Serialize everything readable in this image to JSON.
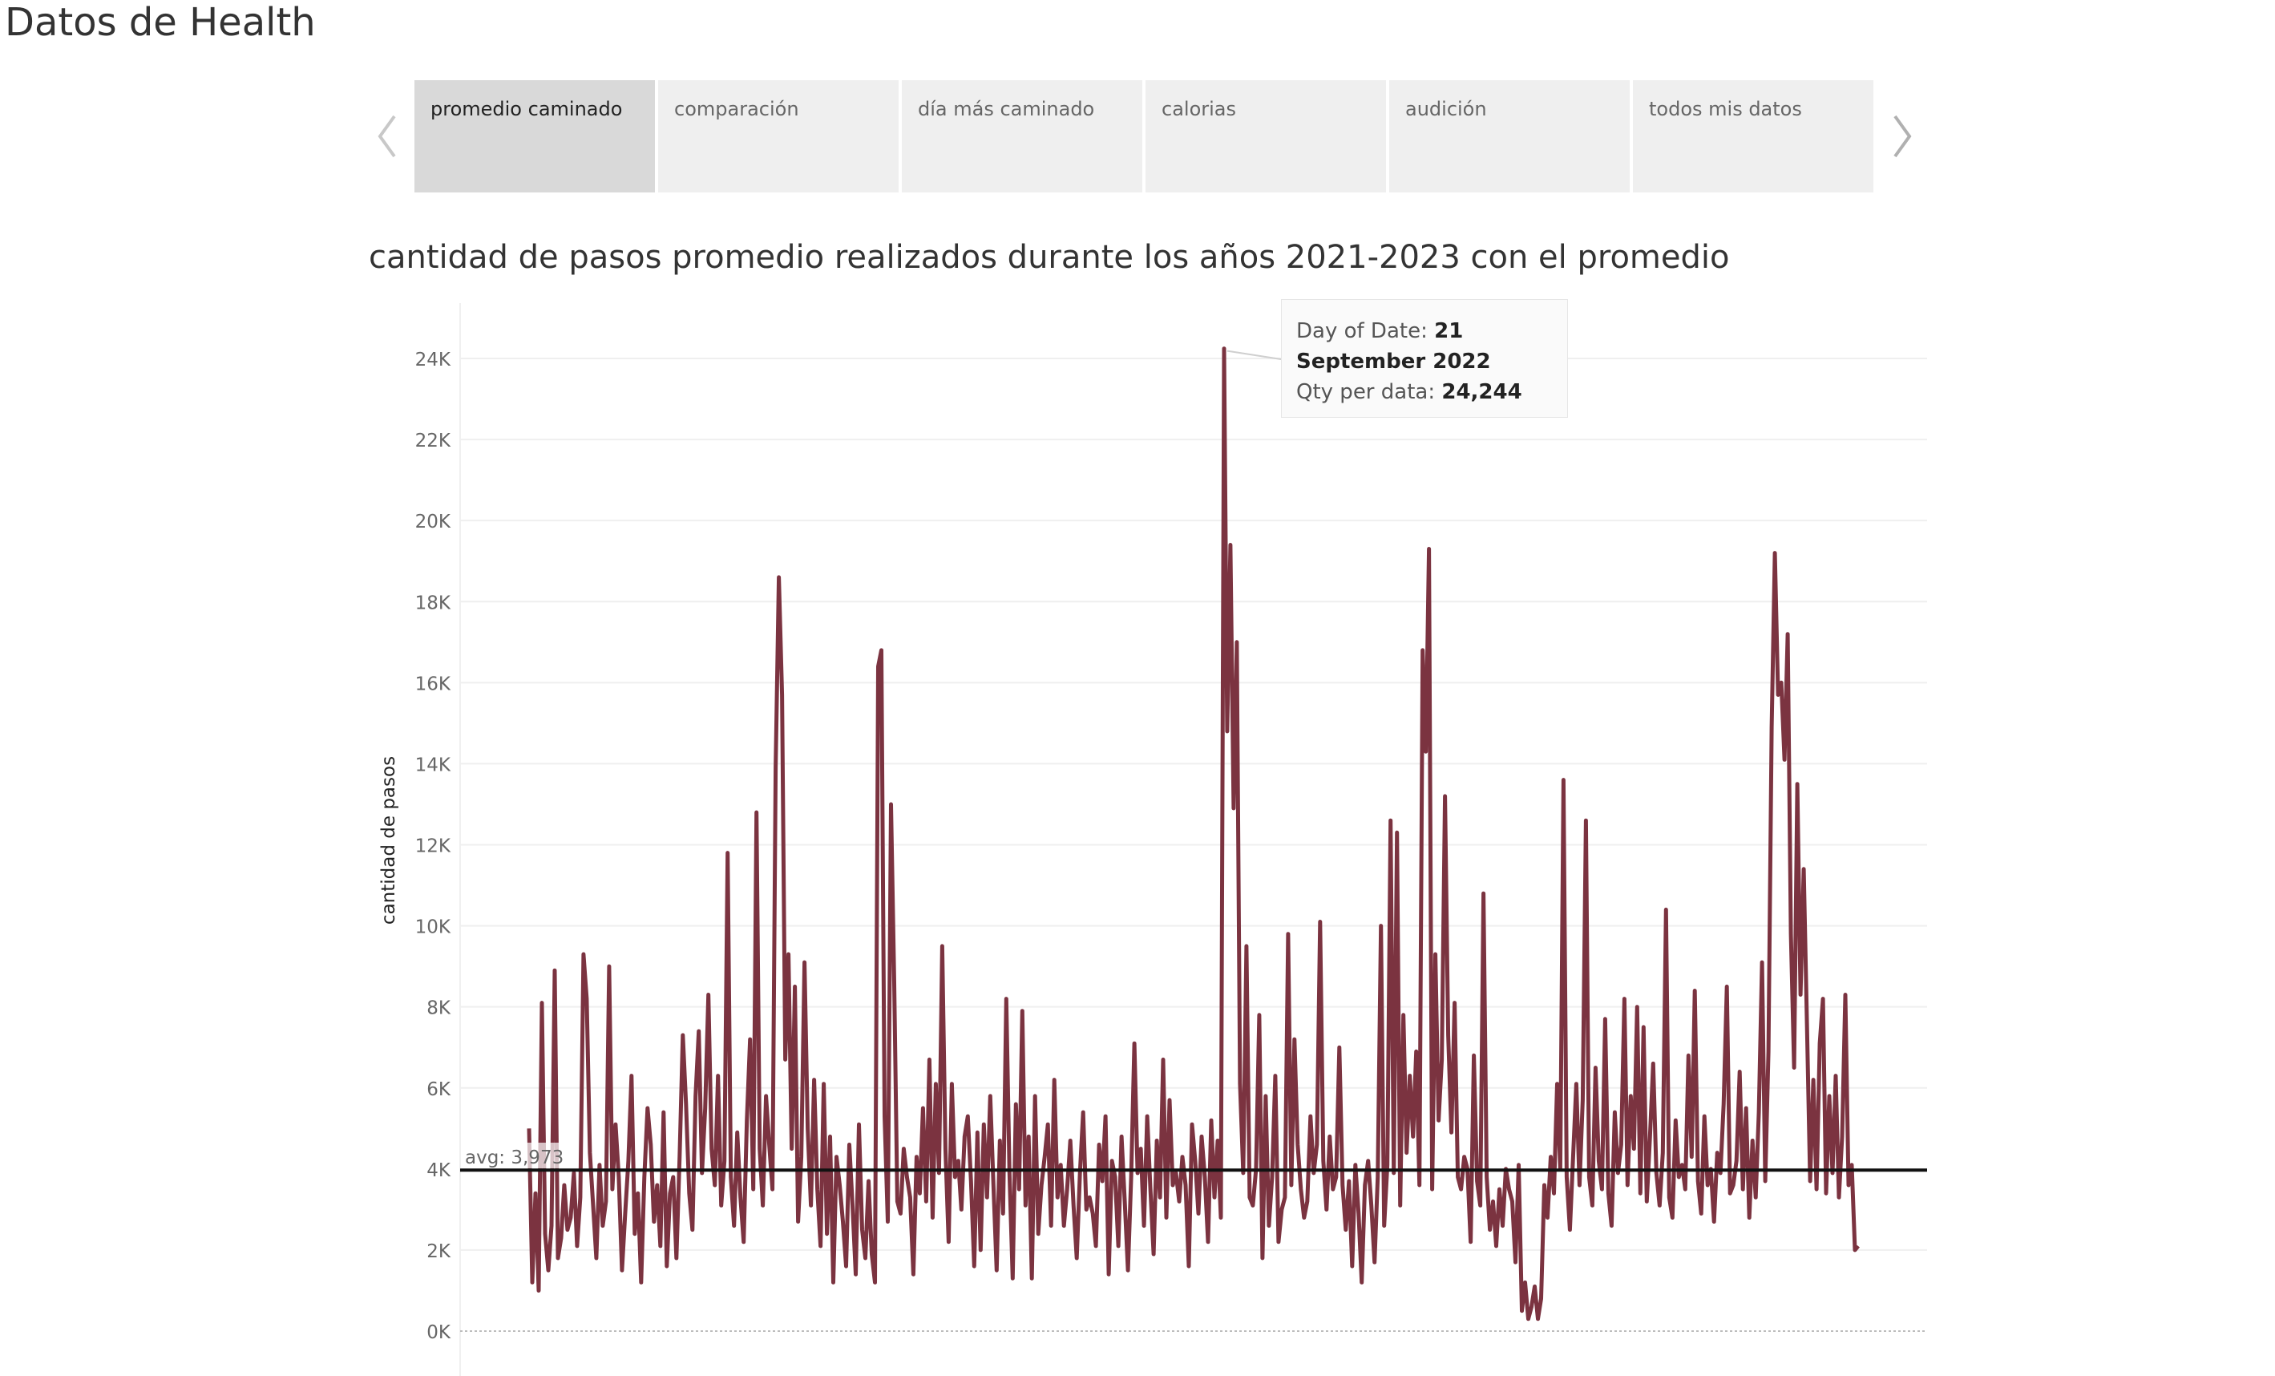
{
  "header": {
    "title": "Datos de Health"
  },
  "tabs": [
    {
      "label": "promedio caminado",
      "active": true
    },
    {
      "label": "comparación",
      "active": false
    },
    {
      "label": "día más caminado",
      "active": false
    },
    {
      "label": "calorias",
      "active": false
    },
    {
      "label": "audición",
      "active": false
    },
    {
      "label": "todos mis datos",
      "active": false
    }
  ],
  "tooltip": {
    "date_label": "Day of Date: ",
    "date_day": "21",
    "date_rest": "September 2022",
    "qty_label": "Qty per data: ",
    "qty_value": "24,244"
  },
  "chart_data": {
    "type": "line",
    "title": "cantidad de pasos promedio realizados durante los años 2021-2023 con el promedio",
    "ylabel": "cantidad de pasos",
    "xlabel": "",
    "ylim": [
      0,
      25000
    ],
    "yticks": [
      0,
      2000,
      4000,
      6000,
      8000,
      10000,
      12000,
      14000,
      16000,
      18000,
      20000,
      22000,
      24000
    ],
    "ytick_labels": [
      "0K",
      "2K",
      "4K",
      "6K",
      "8K",
      "10K",
      "12K",
      "14K",
      "16K",
      "18K",
      "20K",
      "22K",
      "24K"
    ],
    "grid": true,
    "line_color": "#7b3340",
    "reference_line": {
      "value": 3973,
      "label": "avg: 3,973",
      "color": "#111111"
    },
    "highlight": {
      "date": "21 September 2022",
      "value": 24244
    },
    "series": [
      {
        "values": [
          5000,
          1200,
          3400,
          1000,
          8100,
          2400,
          1500,
          2600,
          8900,
          1800,
          2300,
          3600,
          2500,
          2800,
          3900,
          2100,
          3300,
          9300,
          8200,
          4400,
          3100,
          1800,
          4100,
          2600,
          3200,
          9000,
          3500,
          5100,
          3800,
          1500,
          2900,
          4200,
          6300,
          2400,
          3400,
          1200,
          3800,
          5500,
          4600,
          2700,
          3600,
          2100,
          5400,
          1600,
          3400,
          3800,
          1800,
          4300,
          7300,
          5600,
          3400,
          2500,
          5800,
          7400,
          3900,
          5500,
          8300,
          4500,
          3600,
          6300,
          3100,
          4200,
          11800,
          3800,
          2600,
          4900,
          3300,
          2200,
          5200,
          7200,
          3500,
          12800,
          4500,
          3100,
          5800,
          4600,
          3500,
          13900,
          18600,
          15700,
          6700,
          9300,
          4500,
          8500,
          2700,
          4300,
          9100,
          5000,
          3100,
          6200,
          3500,
          2100,
          6100,
          2400,
          4800,
          1200,
          4300,
          3600,
          2700,
          1600,
          4600,
          3100,
          1400,
          5100,
          2500,
          1800,
          3700,
          1900,
          1200,
          16400,
          16800,
          5300,
          2700,
          13000,
          8600,
          3200,
          2900,
          4500,
          3800,
          3300,
          1400,
          4300,
          3400,
          5500,
          3200,
          6700,
          2800,
          6100,
          3900,
          9500,
          4500,
          2200,
          6100,
          3800,
          4200,
          3000,
          4800,
          5300,
          3700,
          1600,
          4900,
          2000,
          5100,
          3300,
          5800,
          3600,
          1500,
          4700,
          2900,
          8200,
          3900,
          1300,
          5600,
          3500,
          7900,
          3100,
          4800,
          1300,
          5800,
          2400,
          3600,
          4300,
          5100,
          2600,
          6200,
          3300,
          4100,
          2600,
          3500,
          4700,
          3100,
          1800,
          3900,
          5400,
          3000,
          3300,
          2900,
          2100,
          4600,
          3700,
          5300,
          1400,
          4200,
          3800,
          2100,
          4800,
          3200,
          1500,
          3800,
          7100,
          3900,
          4500,
          2600,
          5300,
          3500,
          1900,
          4700,
          3300,
          6700,
          2800,
          5700,
          3600,
          3900,
          3200,
          4300,
          3600,
          1600,
          5100,
          4200,
          2900,
          4800,
          3800,
          2200,
          5200,
          3300,
          4700,
          2800,
          24244,
          14800,
          19400,
          12900,
          17000,
          6100,
          3900,
          9500,
          3300,
          3100,
          4000,
          7800,
          1800,
          5800,
          2600,
          3800,
          6300,
          2200,
          3000,
          3300,
          9800,
          3600,
          7200,
          4600,
          3500,
          2800,
          3200,
          5300,
          3900,
          4600,
          10100,
          4200,
          3000,
          4800,
          3500,
          3800,
          7000,
          3600,
          2500,
          3700,
          1600,
          4100,
          2900,
          1200,
          3600,
          4200,
          3100,
          1700,
          3800,
          10000,
          2600,
          4100,
          12600,
          3900,
          12300,
          3100,
          7800,
          4400,
          6300,
          4800,
          6900,
          3600,
          16800,
          14300,
          19300,
          3500,
          9300,
          5200,
          6700,
          13200,
          7300,
          4900,
          8100,
          3800,
          3500,
          4300,
          4000,
          2200,
          6800,
          3700,
          3100,
          10800,
          3800,
          2500,
          3200,
          2100,
          3500,
          2600,
          4000,
          3500,
          3200,
          1700,
          4100,
          500,
          1200,
          300,
          600,
          1100,
          300,
          800,
          3600,
          2800,
          4300,
          3400,
          6100,
          4000,
          13600,
          3800,
          2500,
          4300,
          6100,
          3600,
          5700,
          12600,
          3800,
          3100,
          6500,
          4200,
          3500,
          7700,
          3400,
          2600,
          5400,
          3900,
          4600,
          8200,
          3600,
          5800,
          4500,
          8000,
          3400,
          7500,
          3200,
          4800,
          6600,
          3900,
          3100,
          4400,
          10400,
          3300,
          2800,
          5200,
          3800,
          4100,
          3500,
          6800,
          4300,
          8400,
          3700,
          2900,
          5300,
          3600,
          4000,
          2700,
          4400,
          3900,
          5600,
          8500,
          3400,
          3600,
          4200,
          6400,
          3500,
          5500,
          2800,
          4700,
          3300,
          5400,
          9100,
          3700,
          6900,
          14900,
          19200,
          15700,
          16000,
          14100,
          17200,
          9800,
          6500,
          13500,
          8300,
          11400,
          7600,
          3700,
          6200,
          3500,
          7100,
          8200,
          3400,
          5800,
          3900,
          6300,
          3300,
          4800,
          8300,
          3600,
          4100,
          2000,
          2100
        ]
      }
    ]
  }
}
